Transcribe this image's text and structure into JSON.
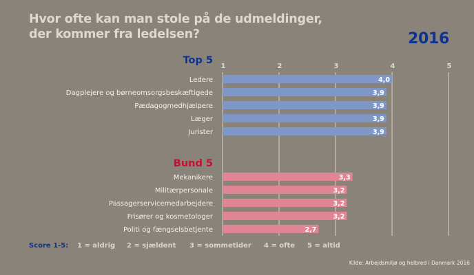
{
  "title": {
    "line1": "Hvor ofte kan man stole på de udmeldinger,",
    "line2": "der kommer fra ledelsen?"
  },
  "year": "2016",
  "legend": {
    "label": "Score 1-5:",
    "items": [
      "1 = aldrig",
      "2 = sjældent",
      "3 = sommetider",
      "4 = ofte",
      "5 = altid"
    ]
  },
  "source": "Kilde: Arbejdsmiljø og helbred i Danmark 2016",
  "colors": {
    "top_bar": "#7f97c6",
    "bottom_bar": "#e08594",
    "top_heading": "#0d3391",
    "bottom_heading": "#c8102e",
    "background": "#8a837a"
  },
  "chart_data": {
    "type": "bar",
    "orientation": "horizontal",
    "title": "Hvor ofte kan man stole på de udmeldinger, der kommer fra ledelsen?",
    "xlabel": "",
    "ylabel": "",
    "xlim": [
      1,
      5
    ],
    "xticks": [
      "1",
      "2",
      "3",
      "4",
      "5"
    ],
    "grid": true,
    "groups": [
      {
        "name": "Top 5",
        "categories": [
          "Ledere",
          "Dagplejere og børneomsorgsbeskæftigede",
          "Pædagogmedhjælpere",
          "Læger",
          "Jurister"
        ],
        "values": [
          4.0,
          3.9,
          3.9,
          3.9,
          3.9
        ],
        "labels": [
          "4,0",
          "3,9",
          "3,9",
          "3,9",
          "3,9"
        ]
      },
      {
        "name": "Bund 5",
        "categories": [
          "Mekanikere",
          "Militærpersonale",
          "Passagerservicemedarbejdere",
          "Frisører og kosmetologer",
          "Politi og fængselsbetjente"
        ],
        "values": [
          3.3,
          3.2,
          3.2,
          3.2,
          2.7
        ],
        "labels": [
          "3,3",
          "3,2",
          "3,2",
          "3,2",
          "2,7"
        ]
      }
    ]
  }
}
